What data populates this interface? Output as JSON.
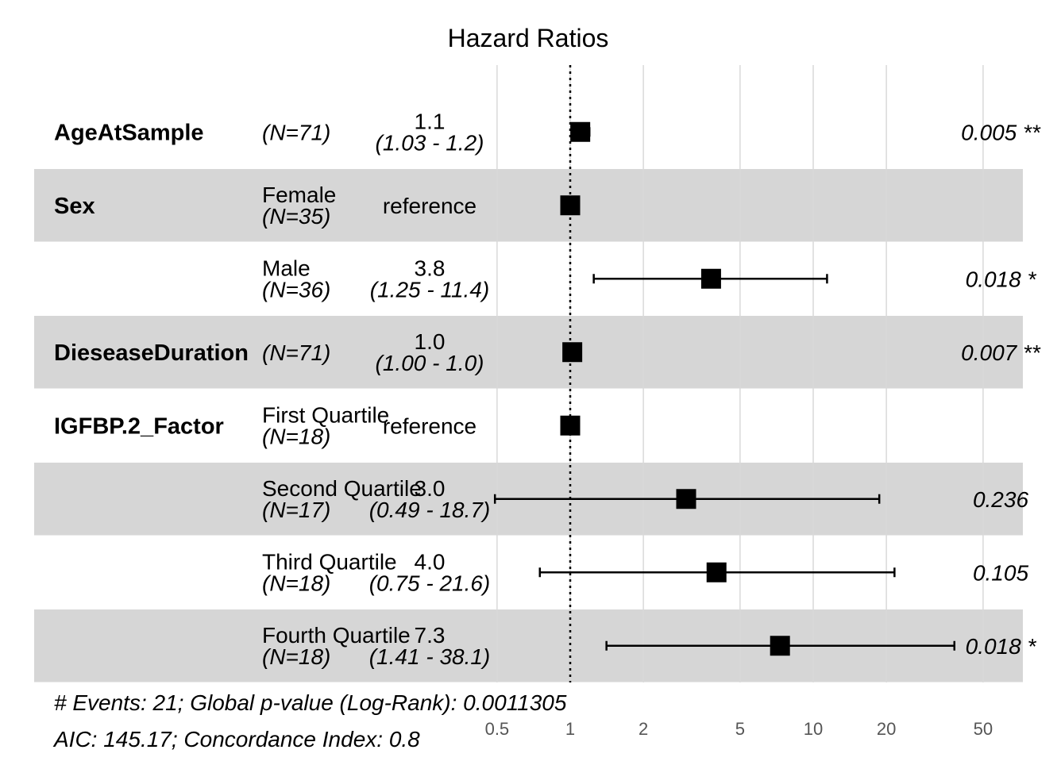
{
  "chart_data": {
    "type": "forest",
    "title": "Hazard Ratios",
    "x_scale": "log",
    "xlim": [
      0.5,
      60
    ],
    "x_ticks": [
      0.5,
      1,
      2,
      5,
      10,
      20,
      50
    ],
    "x_tick_labels": [
      "0.5",
      "1",
      "2",
      "5",
      "10",
      "20",
      "50"
    ],
    "reference_line": 1,
    "rows": [
      {
        "variable": "AgeAtSample",
        "level": "",
        "n": "(N=71)",
        "estimate": 1.1,
        "hr_text": "1.1",
        "ci_low": 1.03,
        "ci_high": 1.2,
        "ci_text": "(1.03 -  1.2)",
        "p_text": "0.005 **",
        "shaded": false
      },
      {
        "variable": "Sex",
        "level": "Female",
        "n": "(N=35)",
        "estimate": 1,
        "hr_text": "reference",
        "ci_low": null,
        "ci_high": null,
        "ci_text": "",
        "p_text": "",
        "shaded": true
      },
      {
        "variable": "",
        "level": "Male",
        "n": "(N=36)",
        "estimate": 3.8,
        "hr_text": "3.8",
        "ci_low": 1.25,
        "ci_high": 11.4,
        "ci_text": "(1.25 - 11.4)",
        "p_text": "0.018 *",
        "shaded": false
      },
      {
        "variable": "DieseaseDuration",
        "level": "",
        "n": "(N=71)",
        "estimate": 1.02,
        "hr_text": "1.0",
        "ci_low": 1.0,
        "ci_high": 1.0,
        "ci_text": "(1.00 -  1.0)",
        "p_text": "0.007 **",
        "shaded": true
      },
      {
        "variable": "IGFBP.2_Factor",
        "level": "First Quartile",
        "n": "(N=18)",
        "estimate": 1,
        "hr_text": "reference",
        "ci_low": null,
        "ci_high": null,
        "ci_text": "",
        "p_text": "",
        "shaded": false
      },
      {
        "variable": "",
        "level": "Second Quartile",
        "n": "(N=17)",
        "estimate": 3.0,
        "hr_text": "3.0",
        "ci_low": 0.49,
        "ci_high": 18.7,
        "ci_text": "(0.49 - 18.7)",
        "p_text": "0.236",
        "shaded": true
      },
      {
        "variable": "",
        "level": "Third Quartile",
        "n": "(N=18)",
        "estimate": 4.0,
        "hr_text": "4.0",
        "ci_low": 0.75,
        "ci_high": 21.6,
        "ci_text": "(0.75 - 21.6)",
        "p_text": "0.105",
        "shaded": false
      },
      {
        "variable": "",
        "level": "Fourth Quartile",
        "n": "(N=18)",
        "estimate": 7.3,
        "hr_text": "7.3",
        "ci_low": 1.41,
        "ci_high": 38.1,
        "ci_text": "(1.41 - 38.1)",
        "p_text": "0.018 *",
        "shaded": true
      }
    ],
    "footer": [
      "# Events: 21; Global p-value (Log-Rank): 0.0011305",
      "AIC: 145.17; Concordance Index: 0.8"
    ]
  },
  "colors": {
    "shade": "#d6d6d6",
    "grid": "#d9d9d9",
    "mark": "#000000",
    "tick_text": "#555555"
  }
}
